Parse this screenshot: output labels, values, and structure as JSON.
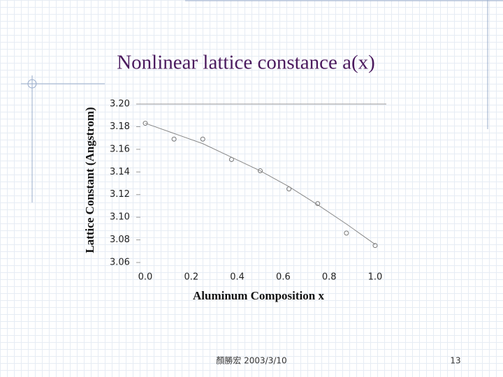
{
  "chart_data": {
    "type": "scatter",
    "title": "Nonlinear lattice constance a(x)",
    "x_label": "Aluminum Composition x",
    "y_label": "Lattice Constant (Angstrom)",
    "x": [
      0,
      0.125,
      0.25,
      0.375,
      0.5,
      0.625,
      0.75,
      0.875,
      1.0
    ],
    "series": [
      {
        "values": [
          3.183,
          3.169,
          3.169,
          3.151,
          3.141,
          3.125,
          3.112,
          3.086,
          3.075
        ],
        "color": "#777777",
        "marker": "circle"
      },
      {
        "values": [
          3.183,
          3.174,
          3.165,
          3.153,
          3.141,
          3.127,
          3.111,
          3.094,
          3.076
        ],
        "color": "#888888",
        "marker": "line"
      }
    ],
    "xlim": [
      0,
      1.0
    ],
    "ylim": [
      3.06,
      3.2
    ],
    "xticks": [
      {
        "value": 0,
        "label": "0.0"
      },
      {
        "value": 0.2,
        "label": "0.2"
      },
      {
        "value": 0.4,
        "label": "0.4"
      },
      {
        "value": 0.6,
        "label": "0.6"
      },
      {
        "value": 0.8,
        "label": "0.8"
      },
      {
        "value": 1,
        "label": "1.0"
      }
    ],
    "yticks": [
      3.06,
      3.08,
      {
        "value": 3.1,
        "label": "3.10"
      },
      3.12,
      3.14,
      3.16,
      3.18,
      {
        "value": 3.2,
        "label": "3.20"
      }
    ]
  },
  "footer": {
    "author": "顏勝宏 2003/3/10",
    "page": 13
  }
}
